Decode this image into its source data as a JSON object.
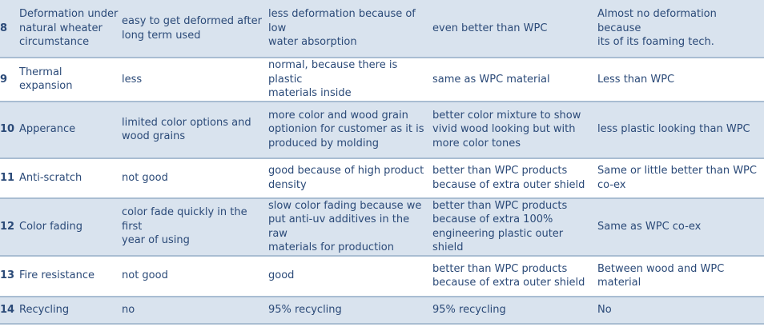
{
  "rows": [
    {
      "num": "8",
      "property": "Deformation under\nnatural wheater\ncircumstance",
      "wood": "easy to get deformed after\nlong term used",
      "wpc": "less deformation because of low\nwater absorption",
      "coex": "even better than WPC",
      "foam": "Almost no deformation because\nits of its foaming tech."
    },
    {
      "num": "9",
      "property": "Thermal expansion",
      "wood": "less",
      "wpc": "normal, because there is plastic\nmaterials inside",
      "coex": "same as WPC material",
      "foam": "Less than WPC"
    },
    {
      "num": "10",
      "property": "Apperance",
      "wood": "limited color options and\nwood grains",
      "wpc": "more color and wood grain\noptionion for customer as it is\nproduced by molding",
      "coex": "better color mixture to show\nvivid wood looking but with\nmore color tones",
      "foam": "less plastic looking than WPC"
    },
    {
      "num": "11",
      "property": "Anti-scratch",
      "wood": "not good",
      "wpc": "good because of high product\ndensity",
      "coex": "better than WPC products\nbecause of extra outer shield",
      "foam": "Same or little better than WPC\nco-ex"
    },
    {
      "num": "12",
      "property": "Color fading",
      "wood": "color fade quickly in the first\nyear of using",
      "wpc": "slow color fading because we\nput anti-uv additives in the raw\nmaterials for production",
      "coex": "better than WPC products\nbecause of extra 100%\nengineering plastic outer shield",
      "foam": "Same as WPC co-ex"
    },
    {
      "num": "13",
      "property": "Fire resistance",
      "wood": "not good",
      "wpc": "good",
      "coex": "better than WPC products\nbecause of extra outer shield",
      "foam": "Between wood and WPC\nmaterial"
    },
    {
      "num": "14",
      "property": "Recycling",
      "wood": "no",
      "wpc": "95% recycling",
      "coex": "95% recycling",
      "foam": "No"
    }
  ]
}
